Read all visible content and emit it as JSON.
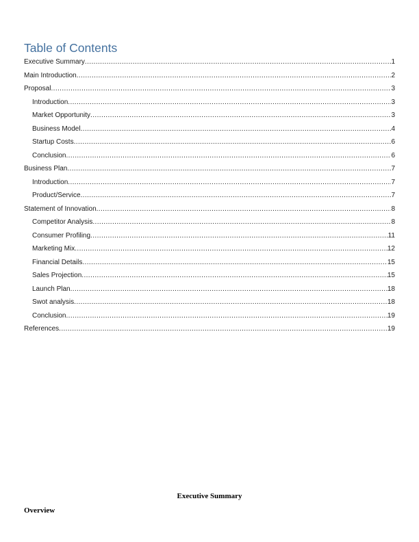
{
  "toc": {
    "heading": "Table of Contents",
    "heading_color": "#44719f",
    "entries": [
      {
        "label": "Executive Summary",
        "page": "1",
        "level": 0
      },
      {
        "label": "Main Introduction",
        "page": "2",
        "level": 0
      },
      {
        "label": "Proposal",
        "page": "3",
        "level": 0
      },
      {
        "label": "Introduction",
        "page": "3",
        "level": 1
      },
      {
        "label": "Market Opportunity",
        "page": "3",
        "level": 1
      },
      {
        "label": "Business Model",
        "page": "4",
        "level": 1
      },
      {
        "label": "Startup Costs",
        "page": "6",
        "level": 1
      },
      {
        "label": "Conclusion",
        "page": "6",
        "level": 1
      },
      {
        "label": "Business Plan",
        "page": "7",
        "level": 0
      },
      {
        "label": "Introduction",
        "page": "7",
        "level": 1
      },
      {
        "label": "Product/Service",
        "page": "7",
        "level": 1
      },
      {
        "label": "Statement of Innovation",
        "page": "8",
        "level": 0
      },
      {
        "label": "Competitor Analysis",
        "page": "8",
        "level": 1
      },
      {
        "label": "Consumer Profiling",
        "page": "11",
        "level": 1
      },
      {
        "label": "Marketing Mix",
        "page": "12",
        "level": 1
      },
      {
        "label": "Financial Details",
        "page": "15",
        "level": 1
      },
      {
        "label": "Sales Projection",
        "page": "15",
        "level": 1
      },
      {
        "label": "Launch Plan",
        "page": "18",
        "level": 1
      },
      {
        "label": "Swot analysis",
        "page": "18",
        "level": 1
      },
      {
        "label": "Conclusion",
        "page": "19",
        "level": 1
      },
      {
        "label": "References",
        "page": "19",
        "level": 0
      }
    ]
  },
  "body": {
    "section_title": "Executive Summary",
    "subsection_title": "Overview"
  }
}
